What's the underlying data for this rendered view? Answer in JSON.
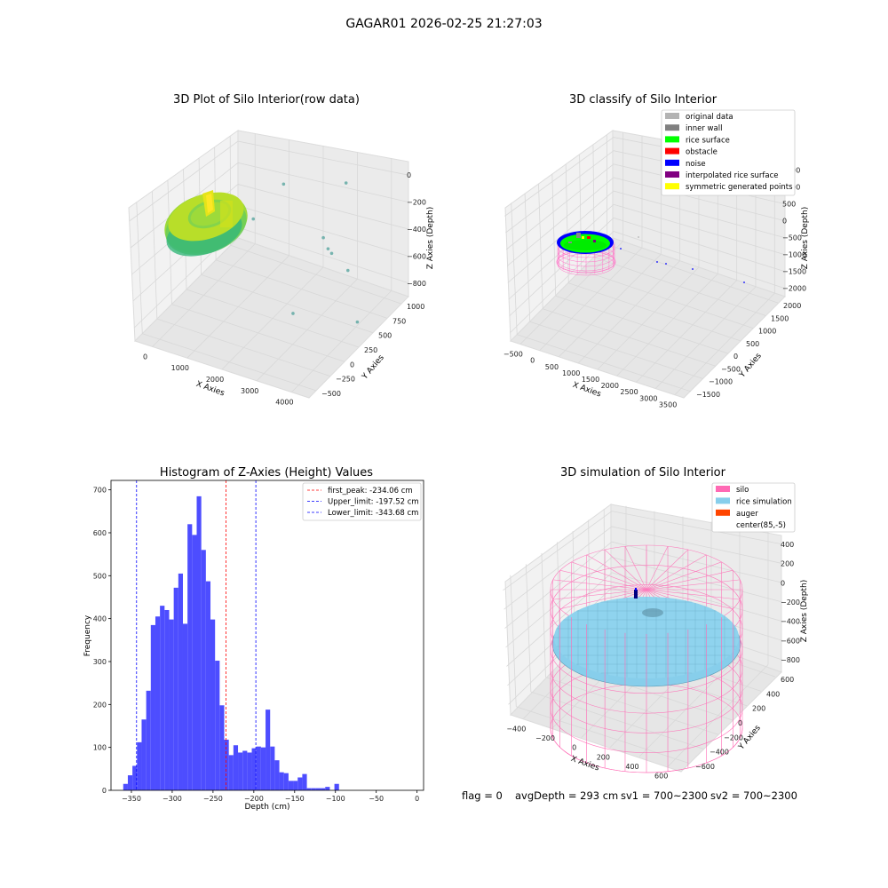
{
  "suptitle": "GAGAR01 2026-02-25 21:27:03",
  "footer": {
    "flag": "flag = 0",
    "avg_depth": "avgDepth = 293 cm",
    "sv1": "sv1 = 700~2300",
    "sv2": "sv2 = 700~2300"
  },
  "chart_data": [
    {
      "type": "scatter",
      "subtype": "3d",
      "title": "3D Plot of Silo Interior(row data)",
      "xlabel": "X Axies",
      "ylabel": "Y Axies",
      "zlabel": "Z Axies (Depth)",
      "xticks": [
        "0",
        "1000",
        "2000",
        "3000",
        "4000"
      ],
      "yticks": [
        "−500",
        "−250",
        "0",
        "250",
        "500",
        "750",
        "1000"
      ],
      "zticks": [
        "−800",
        "−600",
        "−400",
        "−200",
        "0"
      ],
      "colormap": "viridis",
      "outlier_points": [
        {
          "x": 1500,
          "y": 700,
          "z": -180
        },
        {
          "x": 1300,
          "y": 300,
          "z": -280
        },
        {
          "x": 2700,
          "y": 1000,
          "z": -190
        },
        {
          "x": 2400,
          "y": 800,
          "z": -520
        },
        {
          "x": 2600,
          "y": 750,
          "z": -560
        },
        {
          "x": 2650,
          "y": 780,
          "z": -600
        },
        {
          "x": 3200,
          "y": 700,
          "z": -640
        },
        {
          "x": 2500,
          "y": 200,
          "z": -800
        },
        {
          "x": 3900,
          "y": 400,
          "z": -820
        }
      ]
    },
    {
      "type": "scatter",
      "subtype": "3d",
      "title": "3D classify of Silo Interior",
      "xlabel": "X Axies",
      "ylabel": "Y Axies",
      "zlabel": "Z Axies (Depth)",
      "xticks": [
        "−500",
        "0",
        "500",
        "1000",
        "1500",
        "2000",
        "2500",
        "3000",
        "3500"
      ],
      "yticks": [
        "−1500",
        "−1000",
        "−500",
        "0",
        "500",
        "1000",
        "1500",
        "2000"
      ],
      "zticks": [
        "−2000",
        "−1500",
        "−1000",
        "−500",
        "0",
        "500",
        "1000",
        "1500"
      ],
      "legend_position": "upper-right",
      "legend": [
        {
          "label": "original data",
          "color": "#b3b3b3"
        },
        {
          "label": "inner wall",
          "color": "#808080"
        },
        {
          "label": "rice surface",
          "color": "#00ff00"
        },
        {
          "label": "obstacle",
          "color": "#ff0000"
        },
        {
          "label": "noise",
          "color": "#0000ff"
        },
        {
          "label": "interpolated rice surface",
          "color": "#800080"
        },
        {
          "label": "symmetric generated points",
          "color": "#ffff00"
        }
      ]
    },
    {
      "type": "bar",
      "subtype": "histogram",
      "title": "Histogram of Z-Axies (Height) Values",
      "xlabel": "Depth (cm)",
      "ylabel": "Frequency",
      "xlim": [
        -375,
        8
      ],
      "ylim": [
        0,
        722
      ],
      "xticks": [
        -350,
        -300,
        -250,
        -200,
        -150,
        -100,
        -50,
        0
      ],
      "yticks": [
        0,
        100,
        200,
        300,
        400,
        500,
        600,
        700
      ],
      "bar_color": "#4d4dff",
      "bin_start": -360,
      "bin_width": 5.625,
      "values": [
        15,
        35,
        57,
        112,
        165,
        232,
        385,
        405,
        430,
        420,
        398,
        472,
        505,
        388,
        620,
        595,
        685,
        560,
        487,
        398,
        302,
        198,
        118,
        82,
        105,
        88,
        92,
        88,
        98,
        102,
        100,
        188,
        102,
        70,
        42,
        40,
        22,
        22,
        30,
        38,
        5,
        5,
        5,
        5,
        8,
        0,
        15
      ],
      "vlines": [
        {
          "label": "first_peak: -234.06 cm",
          "x": -234.06,
          "color": "#ff0000"
        },
        {
          "label": "Upper_limit: -197.52 cm",
          "x": -197.52,
          "color": "#0000ff"
        },
        {
          "label": "Lower_limit: -343.68 cm",
          "x": -343.68,
          "color": "#0000ff"
        }
      ],
      "legend_position": "upper-right"
    },
    {
      "type": "scatter",
      "subtype": "3d",
      "title": "3D simulation of Silo Interior",
      "xlabel": "X Axies",
      "ylabel": "Y Axies",
      "zlabel": "Z Axies (Depth)",
      "xticks": [
        "−400",
        "−200",
        "0",
        "200",
        "400",
        "600"
      ],
      "yticks": [
        "−600",
        "−400",
        "−200",
        "0",
        "200",
        "400",
        "600"
      ],
      "zticks": [
        "−800",
        "−600",
        "−400",
        "−200",
        "0",
        "200",
        "400"
      ],
      "legend_position": "upper-right",
      "legend": [
        {
          "label": "silo",
          "color": "#ff69b4"
        },
        {
          "label": "rice simulation",
          "color": "#87ceeb"
        },
        {
          "label": "auger",
          "color": "#ff4500"
        },
        {
          "label": "center(85,-5)",
          "color": ""
        }
      ]
    }
  ]
}
